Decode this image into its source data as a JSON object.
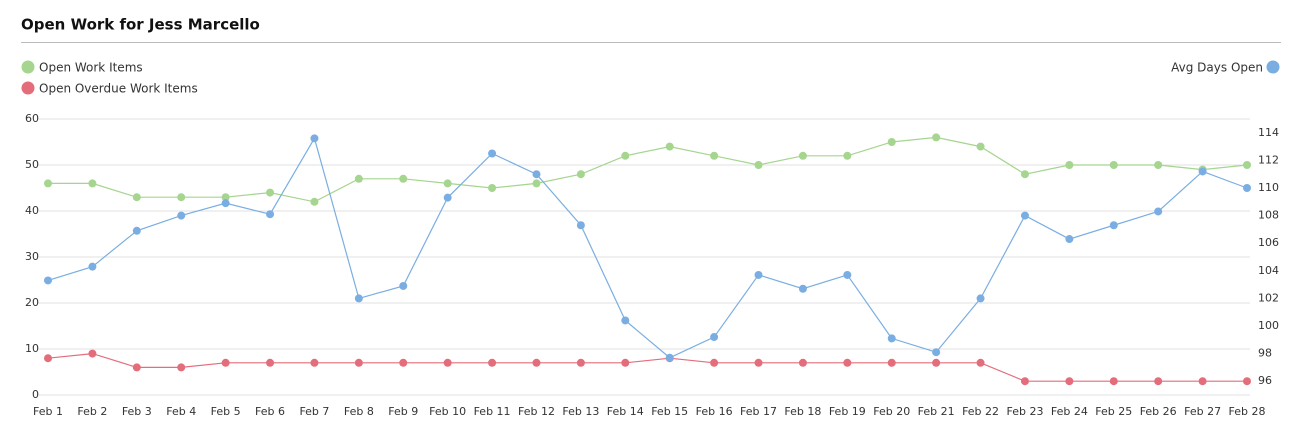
{
  "chart_data": {
    "type": "line",
    "title": "Open Work for Jess Marcello",
    "categories": [
      "Feb 1",
      "Feb 2",
      "Feb 3",
      "Feb 4",
      "Feb 5",
      "Feb 6",
      "Feb 7",
      "Feb 8",
      "Feb 9",
      "Feb 10",
      "Feb 11",
      "Feb 12",
      "Feb 13",
      "Feb 14",
      "Feb 15",
      "Feb 16",
      "Feb 17",
      "Feb 18",
      "Feb 19",
      "Feb 20",
      "Feb 21",
      "Feb 22",
      "Feb 23",
      "Feb 24",
      "Feb 25",
      "Feb 26",
      "Feb 27",
      "Feb 28"
    ],
    "series": [
      {
        "name": "Open Work Items",
        "color": "#a5d58f",
        "values": [
          46,
          46,
          43,
          43,
          43,
          44,
          42,
          47,
          47,
          46,
          45,
          46,
          48,
          52,
          54,
          52,
          50,
          52,
          52,
          55,
          56,
          54,
          48,
          50,
          50,
          50,
          49,
          50
        ]
      },
      {
        "name": "Open Overdue Work Items",
        "color": "#e36d7b",
        "values": [
          8,
          9,
          6,
          6,
          7,
          7,
          7,
          7,
          7,
          7,
          7,
          7,
          7,
          7,
          8,
          7,
          7,
          7,
          7,
          7,
          7,
          7,
          3,
          3,
          3,
          3,
          3,
          3
        ]
      },
      {
        "name": "Avg Days Open",
        "color": "#7aaee2",
        "axis": "y2",
        "values": [
          103.3,
          104.3,
          106.9,
          108.0,
          108.9,
          108.1,
          113.6,
          102.0,
          102.9,
          109.3,
          112.5,
          111.0,
          107.3,
          100.4,
          97.7,
          99.2,
          103.7,
          102.7,
          103.7,
          99.1,
          98.1,
          102.0,
          108.0,
          106.3,
          107.3,
          108.3,
          111.2,
          110.0
        ]
      }
    ],
    "ylim": [
      0,
      60
    ],
    "yticks": [
      0,
      10,
      20,
      30,
      40,
      50,
      60
    ],
    "y2lim": [
      95,
      115
    ],
    "y2ticks": [
      96,
      98,
      100,
      102,
      104,
      106,
      108,
      110,
      112,
      114
    ],
    "grid": true
  }
}
